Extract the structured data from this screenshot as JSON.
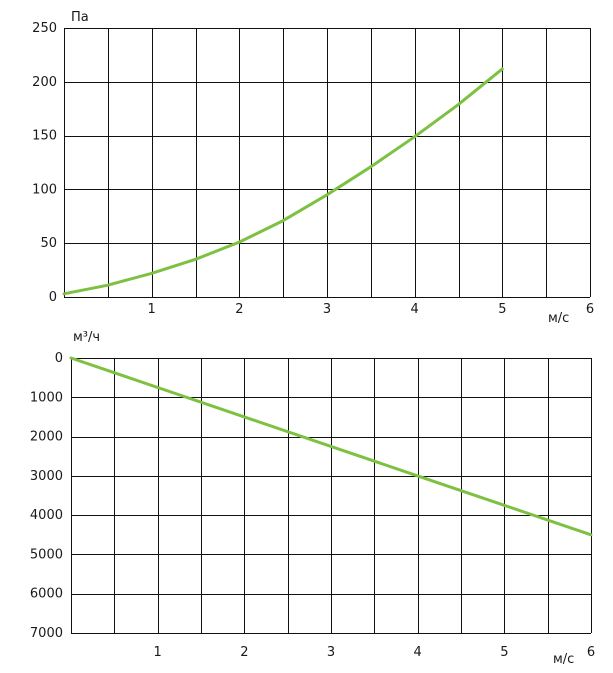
{
  "chart_data": [
    {
      "type": "line",
      "xlabel": "м/с",
      "ylabel": "Па",
      "xlim": [
        0,
        6
      ],
      "ylim": [
        0,
        250
      ],
      "x_ticks": [
        1,
        2,
        3,
        4,
        5,
        6
      ],
      "y_ticks": [
        0,
        50,
        100,
        150,
        200,
        250
      ],
      "grid": true,
      "x_grid_step": 0.5,
      "line_color": "#7dc142",
      "series": [
        {
          "x": [
            0,
            0.5,
            1,
            1.5,
            2,
            2.5,
            3,
            3.5,
            4,
            4.5,
            5
          ],
          "values": [
            3,
            11,
            22,
            35,
            51,
            71,
            95,
            121,
            149,
            179,
            212
          ]
        }
      ]
    },
    {
      "type": "line",
      "xlabel": "м/с",
      "ylabel": "м³/ч",
      "xlim": [
        0,
        6
      ],
      "ylim": [
        0,
        7000
      ],
      "y_inverted": true,
      "x_ticks": [
        1,
        2,
        3,
        4,
        5,
        6
      ],
      "y_ticks": [
        0,
        1000,
        2000,
        3000,
        4000,
        5000,
        6000,
        7000
      ],
      "grid": true,
      "x_grid_step": 0.5,
      "line_color": "#7dc142",
      "series": [
        {
          "x": [
            0,
            1,
            2,
            3,
            4,
            5,
            6
          ],
          "values": [
            0,
            750,
            1500,
            2250,
            3000,
            3750,
            4500
          ]
        }
      ]
    }
  ]
}
